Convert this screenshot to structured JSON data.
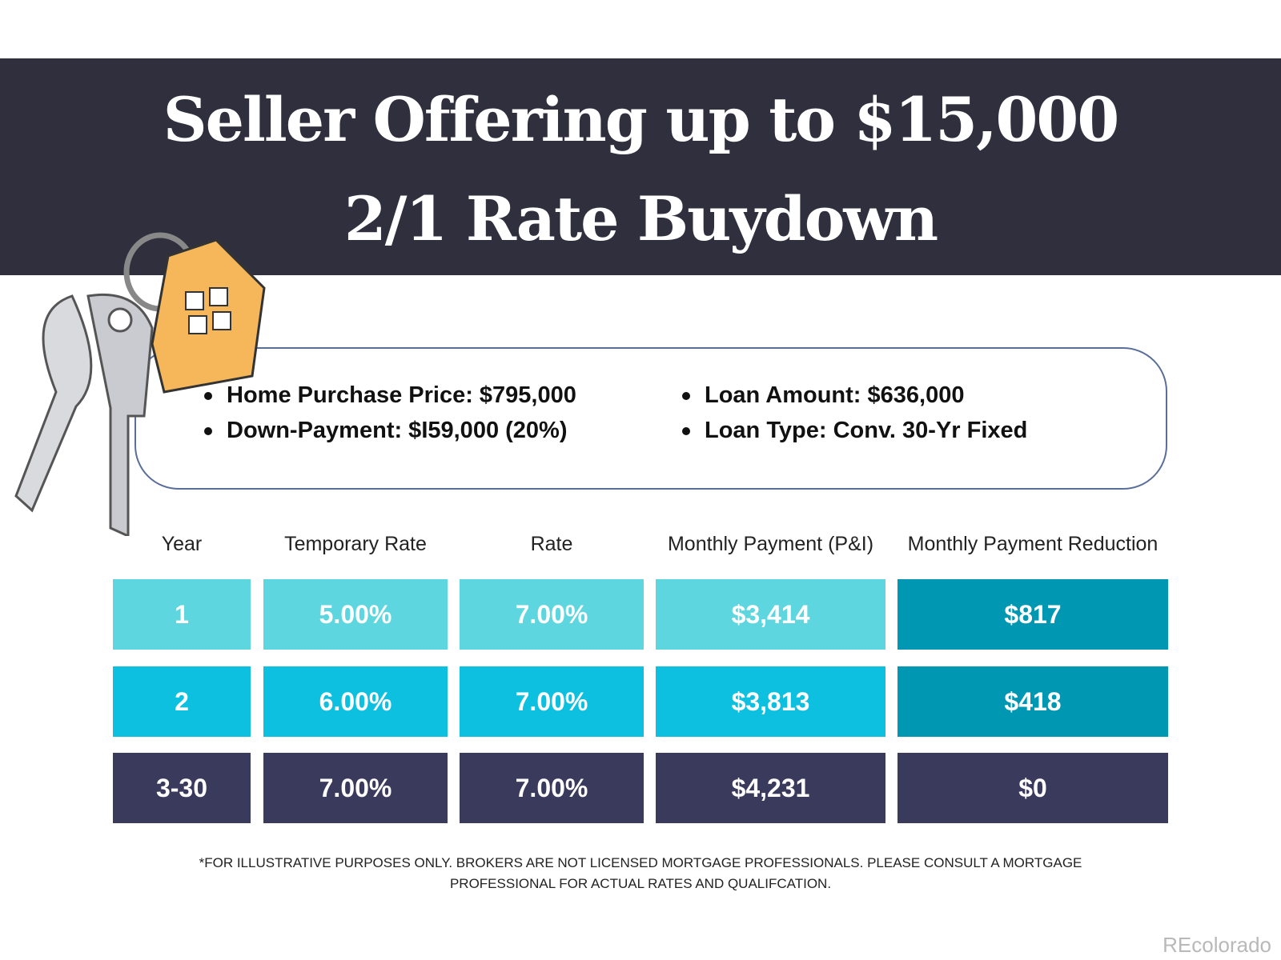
{
  "header": {
    "title_lines": [
      "Seller Offering up to $15,000",
      "2/1 Rate Buydown"
    ]
  },
  "details": {
    "items": [
      "Home Purchase Price: $795,000",
      "Down-Payment: $I59,000 (20%)",
      "Loan Amount: $636,000",
      "Loan Type: Conv. 30-Yr Fixed"
    ]
  },
  "table": {
    "columns": [
      "Year",
      "Temporary Rate",
      "Rate",
      "Monthly Payment (P&I)",
      "Monthly Payment Reduction"
    ],
    "rows": [
      [
        "1",
        "5.00%",
        "7.00%",
        "$3,414",
        "$817"
      ],
      [
        "2",
        "6.00%",
        "7.00%",
        "$3,813",
        "$418"
      ],
      [
        "3-30",
        "7.00%",
        "7.00%",
        "$4,231",
        "$0"
      ]
    ]
  },
  "disclaimer": {
    "lines": [
      "*FOR ILLUSTRATIVE PURPOSES ONLY. BROKERS ARE NOT LICENSED MORTGAGE PROFESSIONALS. PLEASE CONSULT A MORTGAGE",
      "PROFESSIONAL FOR ACTUAL RATES AND QUALIFCATION."
    ]
  },
  "watermark": "REcolorado"
}
